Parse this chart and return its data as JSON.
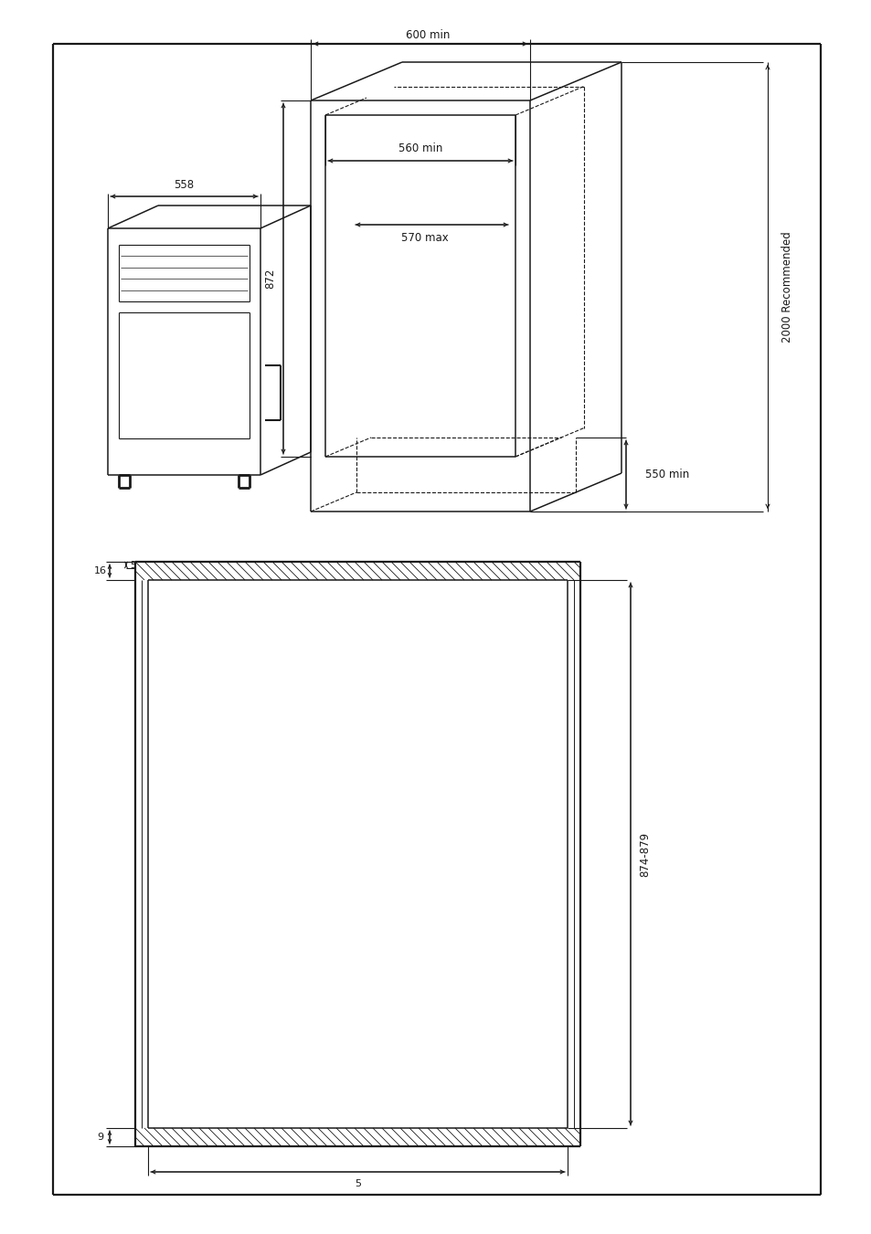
{
  "bg_color": "#ffffff",
  "line_color": "#1a1a1a",
  "annotations": {
    "600min": "600 min",
    "560min": "560 min",
    "570max": "570 max",
    "550min": "550 min",
    "872": "872",
    "558": "558",
    "2000rec": "2000 Recommended",
    "874_879": "874-879",
    "16": "16",
    "5top": "5",
    "9": "9",
    "5bot": "5"
  },
  "figsize": [
    9.54,
    13.51
  ],
  "dpi": 100
}
